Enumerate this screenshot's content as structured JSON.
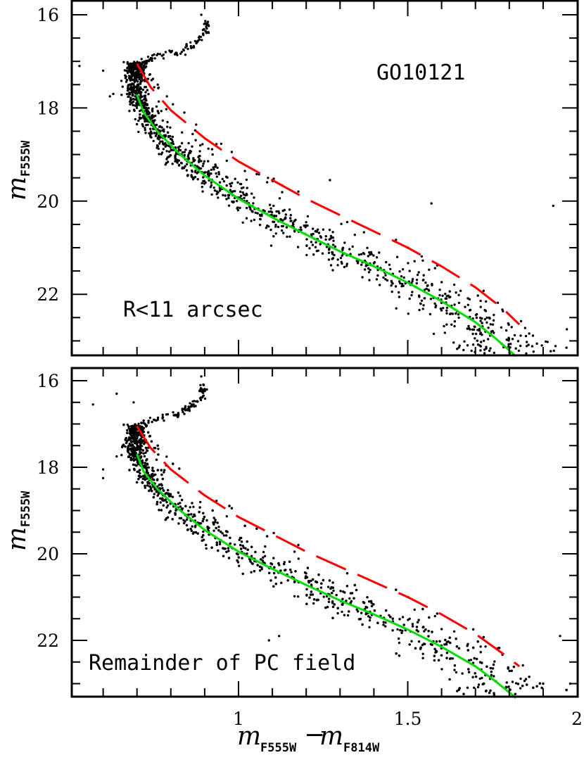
{
  "chart_data": {
    "type": "scatter",
    "title": "",
    "xlabel": "m_F555W - m_F814W",
    "xlabel_parts": {
      "m1": "m",
      "sub1": "F555W",
      "minus": "−",
      "m2": "m",
      "sub2": "F814W"
    },
    "ylabel": "m_F555W",
    "ylabel_parts": {
      "m": "m",
      "sub": "F555W"
    },
    "xlim": [
      0.5,
      2.0
    ],
    "ylim": [
      23.3,
      15.7
    ],
    "y_inverted": true,
    "x_ticks_major": [
      1,
      1.5,
      2
    ],
    "x_tick_labels": [
      "1",
      "1.5",
      "2"
    ],
    "x_ticks_minor_step": 0.1,
    "y_ticks_major": [
      16,
      18,
      20,
      22
    ],
    "y_tick_labels": [
      "16",
      "18",
      "20",
      "22"
    ],
    "y_ticks_minor_step": 0.5,
    "grid": false,
    "legend": null,
    "colors": {
      "points": "#000000",
      "fiducial": "#00dd00",
      "binary_sequence": "#ff0000",
      "frame": "#000000"
    },
    "panels": [
      {
        "id": "top",
        "annotations": [
          {
            "text": "GO10121",
            "x_color": 1.4,
            "y_mag": 17.55
          },
          {
            "text": "R<11 arcsec",
            "x_color": 0.64,
            "y_mag": 22.3
          }
        ],
        "series": [
          {
            "name": "Fiducial main sequence",
            "style": "solid",
            "color": "#00dd00",
            "points": [
              [
                0.7,
                17.72
              ],
              [
                0.72,
                18.1
              ],
              [
                0.76,
                18.5
              ],
              [
                0.82,
                18.95
              ],
              [
                0.9,
                19.45
              ],
              [
                1.0,
                19.95
              ],
              [
                1.1,
                20.35
              ],
              [
                1.2,
                20.72
              ],
              [
                1.3,
                21.08
              ],
              [
                1.4,
                21.4
              ],
              [
                1.5,
                21.75
              ],
              [
                1.6,
                22.15
              ],
              [
                1.7,
                22.6
              ],
              [
                1.76,
                22.95
              ],
              [
                1.82,
                23.33
              ]
            ]
          },
          {
            "name": "Equal-mass binary sequence",
            "style": "dashed",
            "color": "#ff0000",
            "points": [
              [
                0.7,
                17.05
              ],
              [
                0.74,
                17.55
              ],
              [
                0.8,
                18.05
              ],
              [
                0.9,
                18.65
              ],
              [
                1.0,
                19.15
              ],
              [
                1.1,
                19.55
              ],
              [
                1.2,
                19.95
              ],
              [
                1.3,
                20.3
              ],
              [
                1.4,
                20.65
              ],
              [
                1.5,
                21.0
              ],
              [
                1.6,
                21.4
              ],
              [
                1.7,
                21.85
              ],
              [
                1.78,
                22.3
              ],
              [
                1.83,
                22.65
              ]
            ]
          },
          {
            "name": "Stars",
            "style": "points",
            "color": "#000000",
            "n_points_approx": 1300,
            "subgiant_branch": [
              [
                0.7,
                17.1
              ],
              [
                0.75,
                16.9
              ],
              [
                0.82,
                16.8
              ],
              [
                0.87,
                16.65
              ],
              [
                0.9,
                16.4
              ],
              [
                0.91,
                16.15
              ]
            ],
            "outliers": [
              [
                0.53,
                17.1
              ],
              [
                0.6,
                17.2
              ],
              [
                0.62,
                17.75
              ],
              [
                0.63,
                17.7
              ],
              [
                0.89,
                16.0
              ],
              [
                1.57,
                20.05
              ],
              [
                1.93,
                20.1
              ],
              [
                1.97,
                22.75
              ],
              [
                2.0,
                23.0
              ],
              [
                1.27,
                19.55
              ],
              [
                0.84,
                18.1
              ]
            ]
          }
        ]
      },
      {
        "id": "bottom",
        "annotations": [
          {
            "text": "Remainder of PC field",
            "x_color": 0.55,
            "y_mag": 22.6
          }
        ],
        "series": [
          {
            "name": "Fiducial main sequence",
            "style": "solid",
            "color": "#00dd00",
            "points": [
              [
                0.7,
                17.7
              ],
              [
                0.72,
                18.1
              ],
              [
                0.76,
                18.5
              ],
              [
                0.82,
                18.95
              ],
              [
                0.9,
                19.45
              ],
              [
                1.0,
                19.95
              ],
              [
                1.1,
                20.35
              ],
              [
                1.2,
                20.72
              ],
              [
                1.3,
                21.08
              ],
              [
                1.4,
                21.4
              ],
              [
                1.5,
                21.75
              ],
              [
                1.6,
                22.15
              ],
              [
                1.7,
                22.6
              ],
              [
                1.76,
                22.95
              ],
              [
                1.82,
                23.33
              ]
            ]
          },
          {
            "name": "Equal-mass binary sequence",
            "style": "dashed",
            "color": "#ff0000",
            "points": [
              [
                0.7,
                17.05
              ],
              [
                0.74,
                17.55
              ],
              [
                0.8,
                18.05
              ],
              [
                0.9,
                18.65
              ],
              [
                1.0,
                19.15
              ],
              [
                1.1,
                19.55
              ],
              [
                1.2,
                19.95
              ],
              [
                1.3,
                20.3
              ],
              [
                1.4,
                20.65
              ],
              [
                1.5,
                21.0
              ],
              [
                1.6,
                21.4
              ],
              [
                1.7,
                21.85
              ],
              [
                1.78,
                22.3
              ],
              [
                1.83,
                22.6
              ]
            ]
          },
          {
            "name": "Stars",
            "style": "points",
            "color": "#000000",
            "n_points_approx": 1600,
            "subgiant_branch": [
              [
                0.7,
                17.05
              ],
              [
                0.75,
                16.9
              ],
              [
                0.82,
                16.75
              ],
              [
                0.86,
                16.6
              ],
              [
                0.89,
                16.4
              ],
              [
                0.9,
                16.1
              ]
            ],
            "outliers": [
              [
                0.57,
                16.55
              ],
              [
                0.64,
                16.3
              ],
              [
                0.69,
                16.5
              ],
              [
                0.6,
                18.05
              ],
              [
                0.6,
                18.25
              ],
              [
                0.64,
                17.75
              ],
              [
                0.66,
                17.5
              ],
              [
                1.09,
                22.0
              ],
              [
                1.12,
                21.9
              ],
              [
                1.95,
                21.9
              ],
              [
                1.9,
                23.0
              ],
              [
                1.98,
                23.0
              ],
              [
                0.89,
                15.9
              ]
            ]
          }
        ]
      }
    ]
  }
}
